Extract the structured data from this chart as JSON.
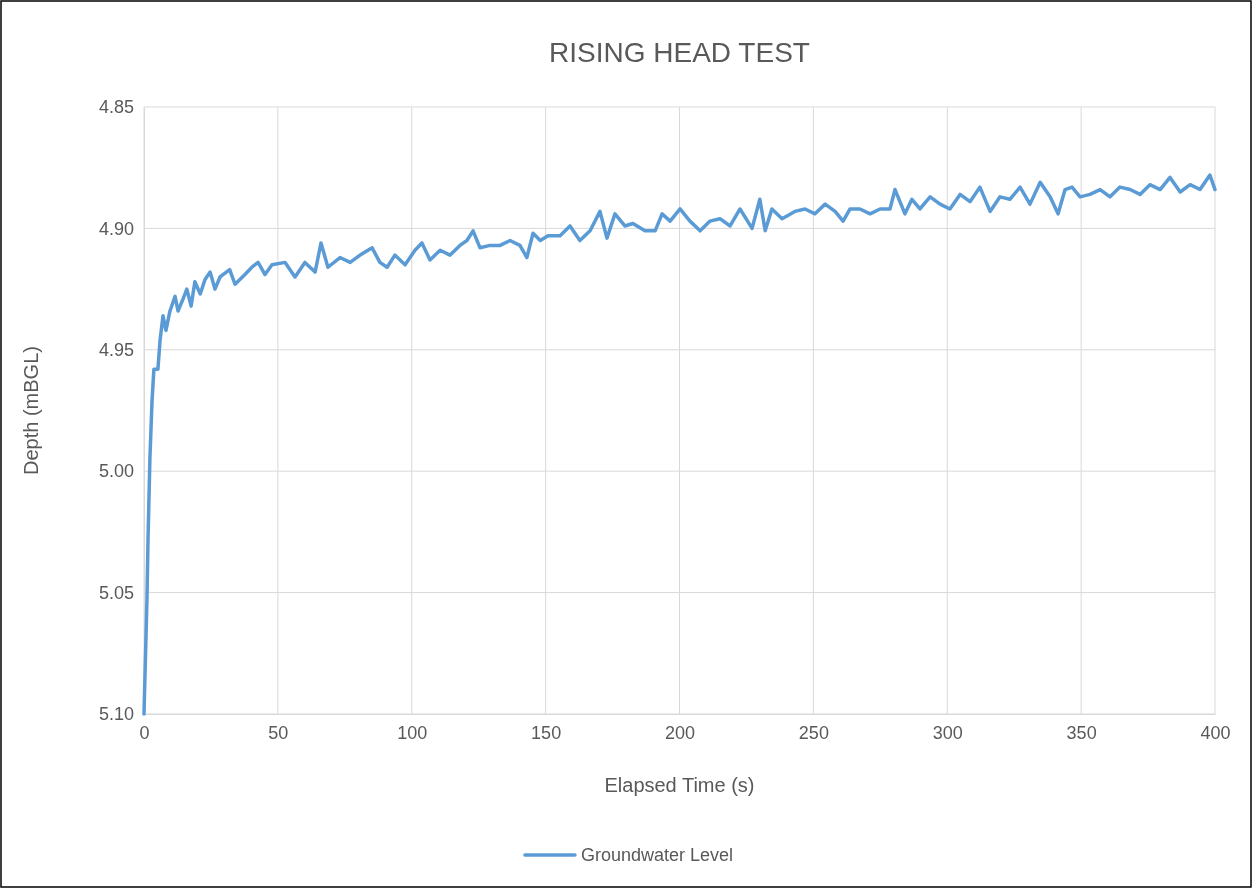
{
  "chart_data": {
    "type": "line",
    "title": "RISING HEAD TEST",
    "xlabel": "Elapsed Time (s)",
    "ylabel": "Depth (mBGL)",
    "xlim": [
      0,
      400
    ],
    "xticks": [
      0,
      50,
      100,
      150,
      200,
      250,
      300,
      350,
      400
    ],
    "ylim": [
      5.1,
      4.85
    ],
    "yticks": [
      4.85,
      {
        "value": 4.9,
        "label": "4.90"
      },
      4.95,
      {
        "value": 5.0,
        "label": "5.00"
      },
      5.05,
      {
        "value": 5.1,
        "label": "5.10"
      }
    ],
    "grid": true,
    "legend": "bottom",
    "marker": "none",
    "line_style": "solid",
    "x": [
      0,
      1.1,
      1.5,
      2.2,
      3,
      3.7,
      4.5,
      5.2,
      6,
      7.1,
      8.2,
      9.7,
      11.6,
      12.7,
      14.6,
      16,
      17.6,
      19,
      21,
      22.8,
      24.7,
      26.5,
      28.4,
      32,
      34,
      37.7,
      40.3,
      42.6,
      45.2,
      47.8,
      52.7,
      56.4,
      60.1,
      63.9,
      66.1,
      68.7,
      73.2,
      77,
      80.7,
      85.2,
      88.1,
      90.8,
      93.7,
      97.5,
      101.2,
      103.8,
      106.8,
      110.6,
      114.3,
      118,
      120.6,
      122.9,
      125.5,
      129.2,
      133,
      136.7,
      140.4,
      143,
      145.3,
      148,
      150.9,
      155.4,
      159.1,
      162.8,
      166.6,
      170.3,
      172.9,
      175.9,
      179.6,
      182.6,
      187.1,
      190.9,
      193.5,
      196.5,
      200.2,
      203.9,
      207.7,
      211.4,
      215.1,
      218.9,
      222.6,
      227.1,
      230,
      232,
      234.5,
      238.3,
      243.1,
      246.9,
      250.6,
      254.4,
      258.1,
      261.1,
      263.7,
      267.4,
      271.2,
      274.9,
      278.6,
      280.5,
      284.2,
      286.8,
      289.8,
      293.6,
      297.3,
      301,
      304.8,
      308.5,
      312.2,
      316,
      319.7,
      323.4,
      327.2,
      330.9,
      334.7,
      338.4,
      341.4,
      344,
      346.6,
      349.6,
      353.3,
      357.1,
      360.8,
      364.5,
      368.3,
      372,
      375.7,
      379.5,
      383.2,
      387,
      390.7,
      394.4,
      398.1,
      400
    ],
    "series": [
      {
        "name": "Groundwater Level",
        "color": "#5b9bd5",
        "values": [
          5.1,
          5.053,
          5.028,
          4.995,
          4.971,
          4.958,
          4.958,
          4.958,
          4.946,
          4.936,
          4.942,
          4.934,
          4.928,
          4.934,
          4.929,
          4.925,
          4.932,
          4.922,
          4.927,
          4.921,
          4.918,
          4.925,
          4.92,
          4.917,
          4.923,
          4.919,
          4.916,
          4.914,
          4.919,
          4.915,
          4.914,
          4.92,
          4.914,
          4.918,
          4.906,
          4.916,
          4.912,
          4.914,
          4.911,
          4.908,
          4.914,
          4.916,
          4.911,
          4.915,
          4.909,
          4.906,
          4.913,
          4.909,
          4.911,
          4.907,
          4.905,
          4.901,
          4.908,
          4.907,
          4.907,
          4.905,
          4.907,
          4.912,
          4.902,
          4.905,
          4.903,
          4.903,
          4.899,
          4.905,
          4.901,
          4.893,
          4.904,
          4.894,
          4.899,
          4.898,
          4.901,
          4.901,
          4.894,
          4.897,
          4.892,
          4.897,
          4.901,
          4.897,
          4.896,
          4.899,
          4.892,
          4.9,
          4.888,
          4.901,
          4.892,
          4.896,
          4.893,
          4.892,
          4.894,
          4.89,
          4.893,
          4.897,
          4.892,
          4.892,
          4.894,
          4.892,
          4.892,
          4.884,
          4.894,
          4.888,
          4.892,
          4.887,
          4.89,
          4.892,
          4.886,
          4.889,
          4.883,
          4.893,
          4.887,
          4.888,
          4.883,
          4.89,
          4.881,
          4.887,
          4.894,
          4.884,
          4.883,
          4.887,
          4.886,
          4.884,
          4.887,
          4.883,
          4.884,
          4.886,
          4.882,
          4.884,
          4.879,
          4.885,
          4.882,
          4.884,
          4.878,
          4.884
        ]
      }
    ]
  }
}
